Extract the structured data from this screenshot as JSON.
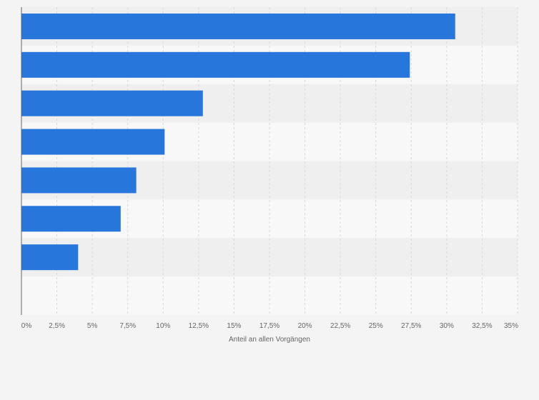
{
  "chart_data": {
    "type": "bar",
    "orientation": "horizontal",
    "categories": [
      "",
      "",
      "",
      "",
      "",
      "",
      "",
      ""
    ],
    "values": [
      30.6,
      27.4,
      12.8,
      10.1,
      8.1,
      7.0,
      4.0,
      null
    ],
    "xlabel": "Anteil an allen Vorgängen",
    "xlim": [
      0,
      35
    ],
    "x_ticks": [
      0,
      2.5,
      5,
      7.5,
      10,
      12.5,
      15,
      17.5,
      20,
      22.5,
      25,
      27.5,
      30,
      32.5,
      35
    ],
    "x_tick_labels": [
      "0%",
      "2,5%",
      "5%",
      "7,5%",
      "10%",
      "12,5%",
      "15%",
      "17,5%",
      "20%",
      "22,5%",
      "25%",
      "27,5%",
      "30%",
      "32,5%",
      "35%"
    ],
    "grid": true,
    "colors": {
      "bar": "#2776dc",
      "band_light": "#f8f8f8",
      "band_dark": "#efefef",
      "grid": "#d8d8d8",
      "axis": "#666666"
    }
  }
}
